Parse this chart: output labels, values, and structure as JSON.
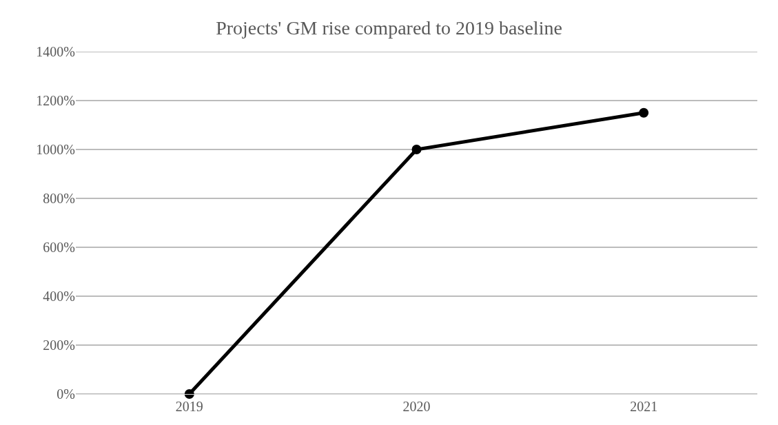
{
  "chart_data": {
    "type": "line",
    "title": "Projects' GM rise compared to 2019 baseline",
    "categories": [
      "2019",
      "2020",
      "2021"
    ],
    "series": [
      {
        "color": "#000000",
        "values": [
          0,
          1000,
          1150
        ]
      }
    ],
    "ylim": [
      0,
      1400
    ],
    "yticks": [
      {
        "value": 0,
        "label": "0%"
      },
      {
        "value": 200,
        "label": "200%"
      },
      {
        "value": 400,
        "label": "400%"
      },
      {
        "value": 600,
        "label": "600%"
      },
      {
        "value": 800,
        "label": "800%"
      },
      {
        "value": 1000,
        "label": "1000%"
      },
      {
        "value": 1200,
        "label": "1200%"
      },
      {
        "value": 1400,
        "label": "1400%"
      }
    ],
    "grid": "y",
    "marker": "circle",
    "line_style": "solid"
  }
}
